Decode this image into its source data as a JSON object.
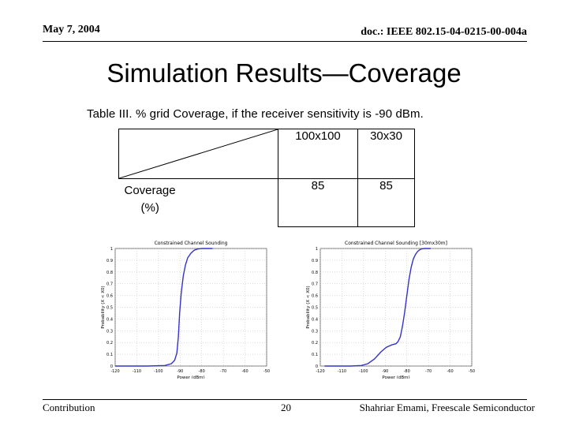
{
  "header": {
    "date": "May 7, 2004",
    "doc": "doc.: IEEE 802.15-04-0215-00-004a"
  },
  "slide": {
    "title": "Simulation Results—Coverage",
    "caption": "Table III. % grid Coverage, if the receiver sensitivity is -90 dBm."
  },
  "table": {
    "columns": [
      "100x100",
      "30x30"
    ],
    "row_label_line1": "Coverage",
    "row_label_line2": "(%)",
    "values": [
      "85",
      "85"
    ]
  },
  "chart_data": [
    {
      "type": "line",
      "title": "Constrained Channel Sounding",
      "xlabel": "Power (dBm)",
      "ylabel": "Probability (X < X0)",
      "xlim": [
        -120,
        -60
      ],
      "ylim": [
        0,
        1
      ],
      "xticks": [
        "-120",
        "-110",
        "-100",
        "-90",
        "-80",
        "-70",
        "-60",
        "-50"
      ],
      "yticks": [
        "0",
        "0.1",
        "0.2",
        "0.3",
        "0.4",
        "0.5",
        "0.6",
        "0.7",
        "0.8",
        "0.9",
        "1"
      ],
      "grid": true,
      "color": "#3333cc",
      "series": [
        {
          "x": [
            -120,
            -105,
            -97,
            -94,
            -92.5,
            -91.5,
            -90.8,
            -90.2,
            -89.5,
            -88.5,
            -87.5,
            -86.5,
            -85,
            -83.5,
            -82,
            -80,
            -77,
            -75
          ],
          "y": [
            0,
            0,
            0.005,
            0.02,
            0.05,
            0.11,
            0.25,
            0.45,
            0.62,
            0.77,
            0.86,
            0.92,
            0.96,
            0.985,
            0.995,
            1,
            1,
            1
          ]
        }
      ]
    },
    {
      "type": "line",
      "title": "Constrained Channel Sounding [30mx30m]",
      "xlabel": "Power (dBm)",
      "ylabel": "Probability (X < X0)",
      "xlim": [
        -120,
        -60
      ],
      "ylim": [
        0,
        1
      ],
      "xticks": [
        "-120",
        "-110",
        "-100",
        "-90",
        "-80",
        "-70",
        "-60",
        "-50"
      ],
      "yticks": [
        "0",
        "0.1",
        "0.2",
        "0.3",
        "0.4",
        "0.5",
        "0.6",
        "0.7",
        "0.8",
        "0.9",
        "1"
      ],
      "grid": true,
      "color": "#3333cc",
      "series": [
        {
          "x": [
            -118,
            -106,
            -101,
            -98,
            -95,
            -92,
            -89.5,
            -87,
            -85,
            -84,
            -83,
            -82,
            -81,
            -80,
            -79,
            -78,
            -77,
            -76,
            -75,
            -74,
            -73,
            -72,
            -70,
            -69
          ],
          "y": [
            0,
            0,
            0.005,
            0.02,
            0.06,
            0.12,
            0.16,
            0.18,
            0.19,
            0.21,
            0.25,
            0.34,
            0.46,
            0.6,
            0.74,
            0.84,
            0.91,
            0.95,
            0.975,
            0.99,
            0.997,
            1,
            1,
            1
          ]
        }
      ]
    }
  ],
  "footer": {
    "left": "Contribution",
    "page": "20",
    "right": "Shahriar Emami, Freescale Semiconductor"
  }
}
